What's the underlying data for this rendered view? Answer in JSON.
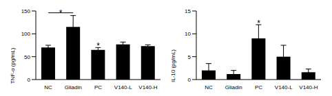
{
  "chart_data": [
    {
      "type": "bar",
      "y_label": "TNF-α (pg/mL)",
      "categories": [
        "NC",
        "Gliadin",
        "PC",
        "V140-L",
        "V140-H"
      ],
      "values": [
        70,
        115,
        65,
        77,
        73
      ],
      "errors": [
        5,
        25,
        5,
        5,
        3
      ],
      "color": "#000000",
      "ylim": [
        0,
        150
      ],
      "yticks": [
        0,
        50,
        100,
        150
      ],
      "grid": false,
      "annotations": [
        {
          "text": "*",
          "from": "NC",
          "to": "Gliadin"
        },
        {
          "text": "*",
          "category": "PC"
        }
      ]
    },
    {
      "type": "bar",
      "y_label": "IL-10 (pg/mL)",
      "categories": [
        "NC",
        "Gliadin",
        "PC",
        "V140-L",
        "V140-H"
      ],
      "values": [
        2,
        1.2,
        9,
        5,
        1.6
      ],
      "errors": [
        1.5,
        0.8,
        3,
        2.5,
        0.7
      ],
      "color": "#000000",
      "ylim": [
        0,
        15
      ],
      "yticks": [
        0,
        5,
        10,
        15
      ],
      "grid": false,
      "annotations": [
        {
          "text": "*",
          "category": "PC"
        }
      ]
    }
  ]
}
